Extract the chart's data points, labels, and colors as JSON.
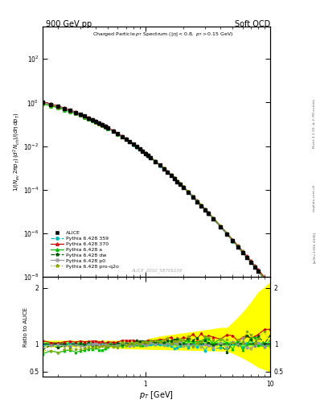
{
  "title_left": "900 GeV pp",
  "title_right": "Soft QCD",
  "watermark": "ALICE_2010_S8706239",
  "xlim": [
    0.15,
    10.0
  ],
  "ylim_main": [
    1e-08,
    3000.0
  ],
  "ylim_ratio": [
    0.4,
    2.2
  ],
  "colors": {
    "ALICE": "#000000",
    "p359": "#00bbbb",
    "p370": "#cc0000",
    "pa": "#00bb00",
    "pdw": "#005500",
    "pp0": "#999999",
    "pproq2o": "#88aa00"
  },
  "band_yellow": "#ffff00",
  "band_green": "#44ff44",
  "spectrum_A": 5.0,
  "spectrum_p0": 0.65,
  "spectrum_n": 7.5
}
